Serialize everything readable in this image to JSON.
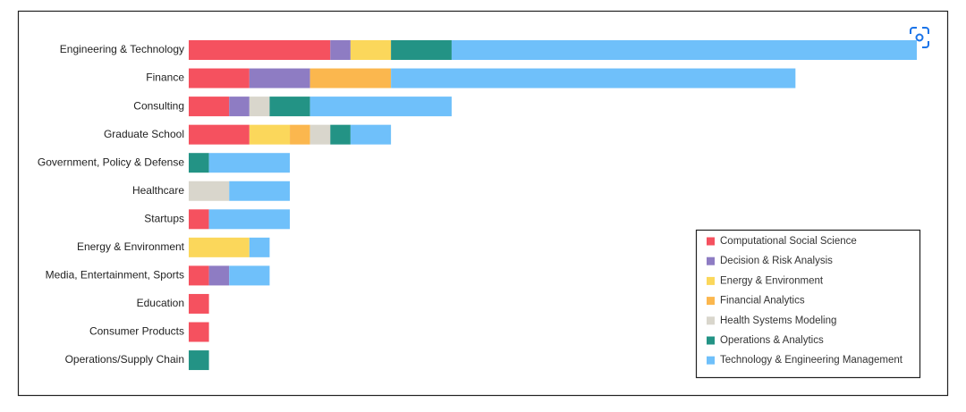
{
  "chart_data": {
    "type": "stacked-barh",
    "categories": [
      "Engineering & Technology",
      "Finance",
      "Consulting",
      "Graduate School",
      "Government, Policy & Defense",
      "Healthcare",
      "Startups",
      "Energy & Environment",
      "Media, Entertainment, Sports",
      "Education",
      "Consumer Products",
      "Operations/Supply Chain"
    ],
    "series": [
      {
        "name": "Computational Social Science",
        "color": "#f5515f",
        "values": [
          7,
          3,
          2,
          3,
          0,
          0,
          1,
          0,
          1,
          1,
          1,
          0
        ]
      },
      {
        "name": "Decision & Risk Analysis",
        "color": "#8e7cc3",
        "values": [
          1,
          3,
          1,
          0,
          0,
          0,
          0,
          0,
          1,
          0,
          0,
          0
        ]
      },
      {
        "name": "Energy & Environment",
        "color": "#fbd75b",
        "values": [
          2,
          0,
          0,
          2,
          0,
          0,
          0,
          3,
          0,
          0,
          0,
          0
        ]
      },
      {
        "name": "Financial Analytics",
        "color": "#fbb74e",
        "values": [
          0,
          4,
          0,
          1,
          0,
          0,
          0,
          0,
          0,
          0,
          0,
          0
        ]
      },
      {
        "name": "Health Systems Modeling",
        "color": "#d9d6cc",
        "values": [
          0,
          0,
          1,
          1,
          0,
          2,
          0,
          0,
          0,
          0,
          0,
          0
        ]
      },
      {
        "name": "Operations & Analytics",
        "color": "#239385",
        "values": [
          3,
          0,
          2,
          1,
          1,
          0,
          0,
          0,
          0,
          0,
          0,
          1
        ]
      },
      {
        "name": "Technology & Engineering Management",
        "color": "#6fc0fa",
        "values": [
          23,
          20,
          7,
          2,
          4,
          3,
          4,
          1,
          2,
          0,
          0,
          0
        ]
      }
    ],
    "legend": "lower right"
  }
}
